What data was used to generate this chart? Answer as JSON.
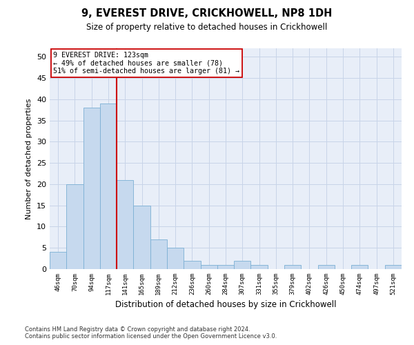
{
  "title": "9, EVEREST DRIVE, CRICKHOWELL, NP8 1DH",
  "subtitle": "Size of property relative to detached houses in Crickhowell",
  "xlabel": "Distribution of detached houses by size in Crickhowell",
  "ylabel": "Number of detached properties",
  "categories": [
    "46sqm",
    "70sqm",
    "94sqm",
    "117sqm",
    "141sqm",
    "165sqm",
    "189sqm",
    "212sqm",
    "236sqm",
    "260sqm",
    "284sqm",
    "307sqm",
    "331sqm",
    "355sqm",
    "379sqm",
    "402sqm",
    "426sqm",
    "450sqm",
    "474sqm",
    "497sqm",
    "521sqm"
  ],
  "values": [
    4,
    20,
    38,
    39,
    21,
    15,
    7,
    5,
    2,
    1,
    1,
    2,
    1,
    0,
    1,
    0,
    1,
    0,
    1,
    0,
    1
  ],
  "bar_color": "#c6d9ee",
  "bar_edge_color": "#7bafd4",
  "vline_x": 3.5,
  "vline_color": "#cc0000",
  "annotation_line1": "9 EVEREST DRIVE: 123sqm",
  "annotation_line2": "← 49% of detached houses are smaller (78)",
  "annotation_line3": "51% of semi-detached houses are larger (81) →",
  "annotation_box_color": "#cc0000",
  "ylim": [
    0,
    52
  ],
  "yticks": [
    0,
    5,
    10,
    15,
    20,
    25,
    30,
    35,
    40,
    45,
    50
  ],
  "grid_color": "#c8d4e8",
  "bg_color": "#e8eef8",
  "footer1": "Contains HM Land Registry data © Crown copyright and database right 2024.",
  "footer2": "Contains public sector information licensed under the Open Government Licence v3.0."
}
